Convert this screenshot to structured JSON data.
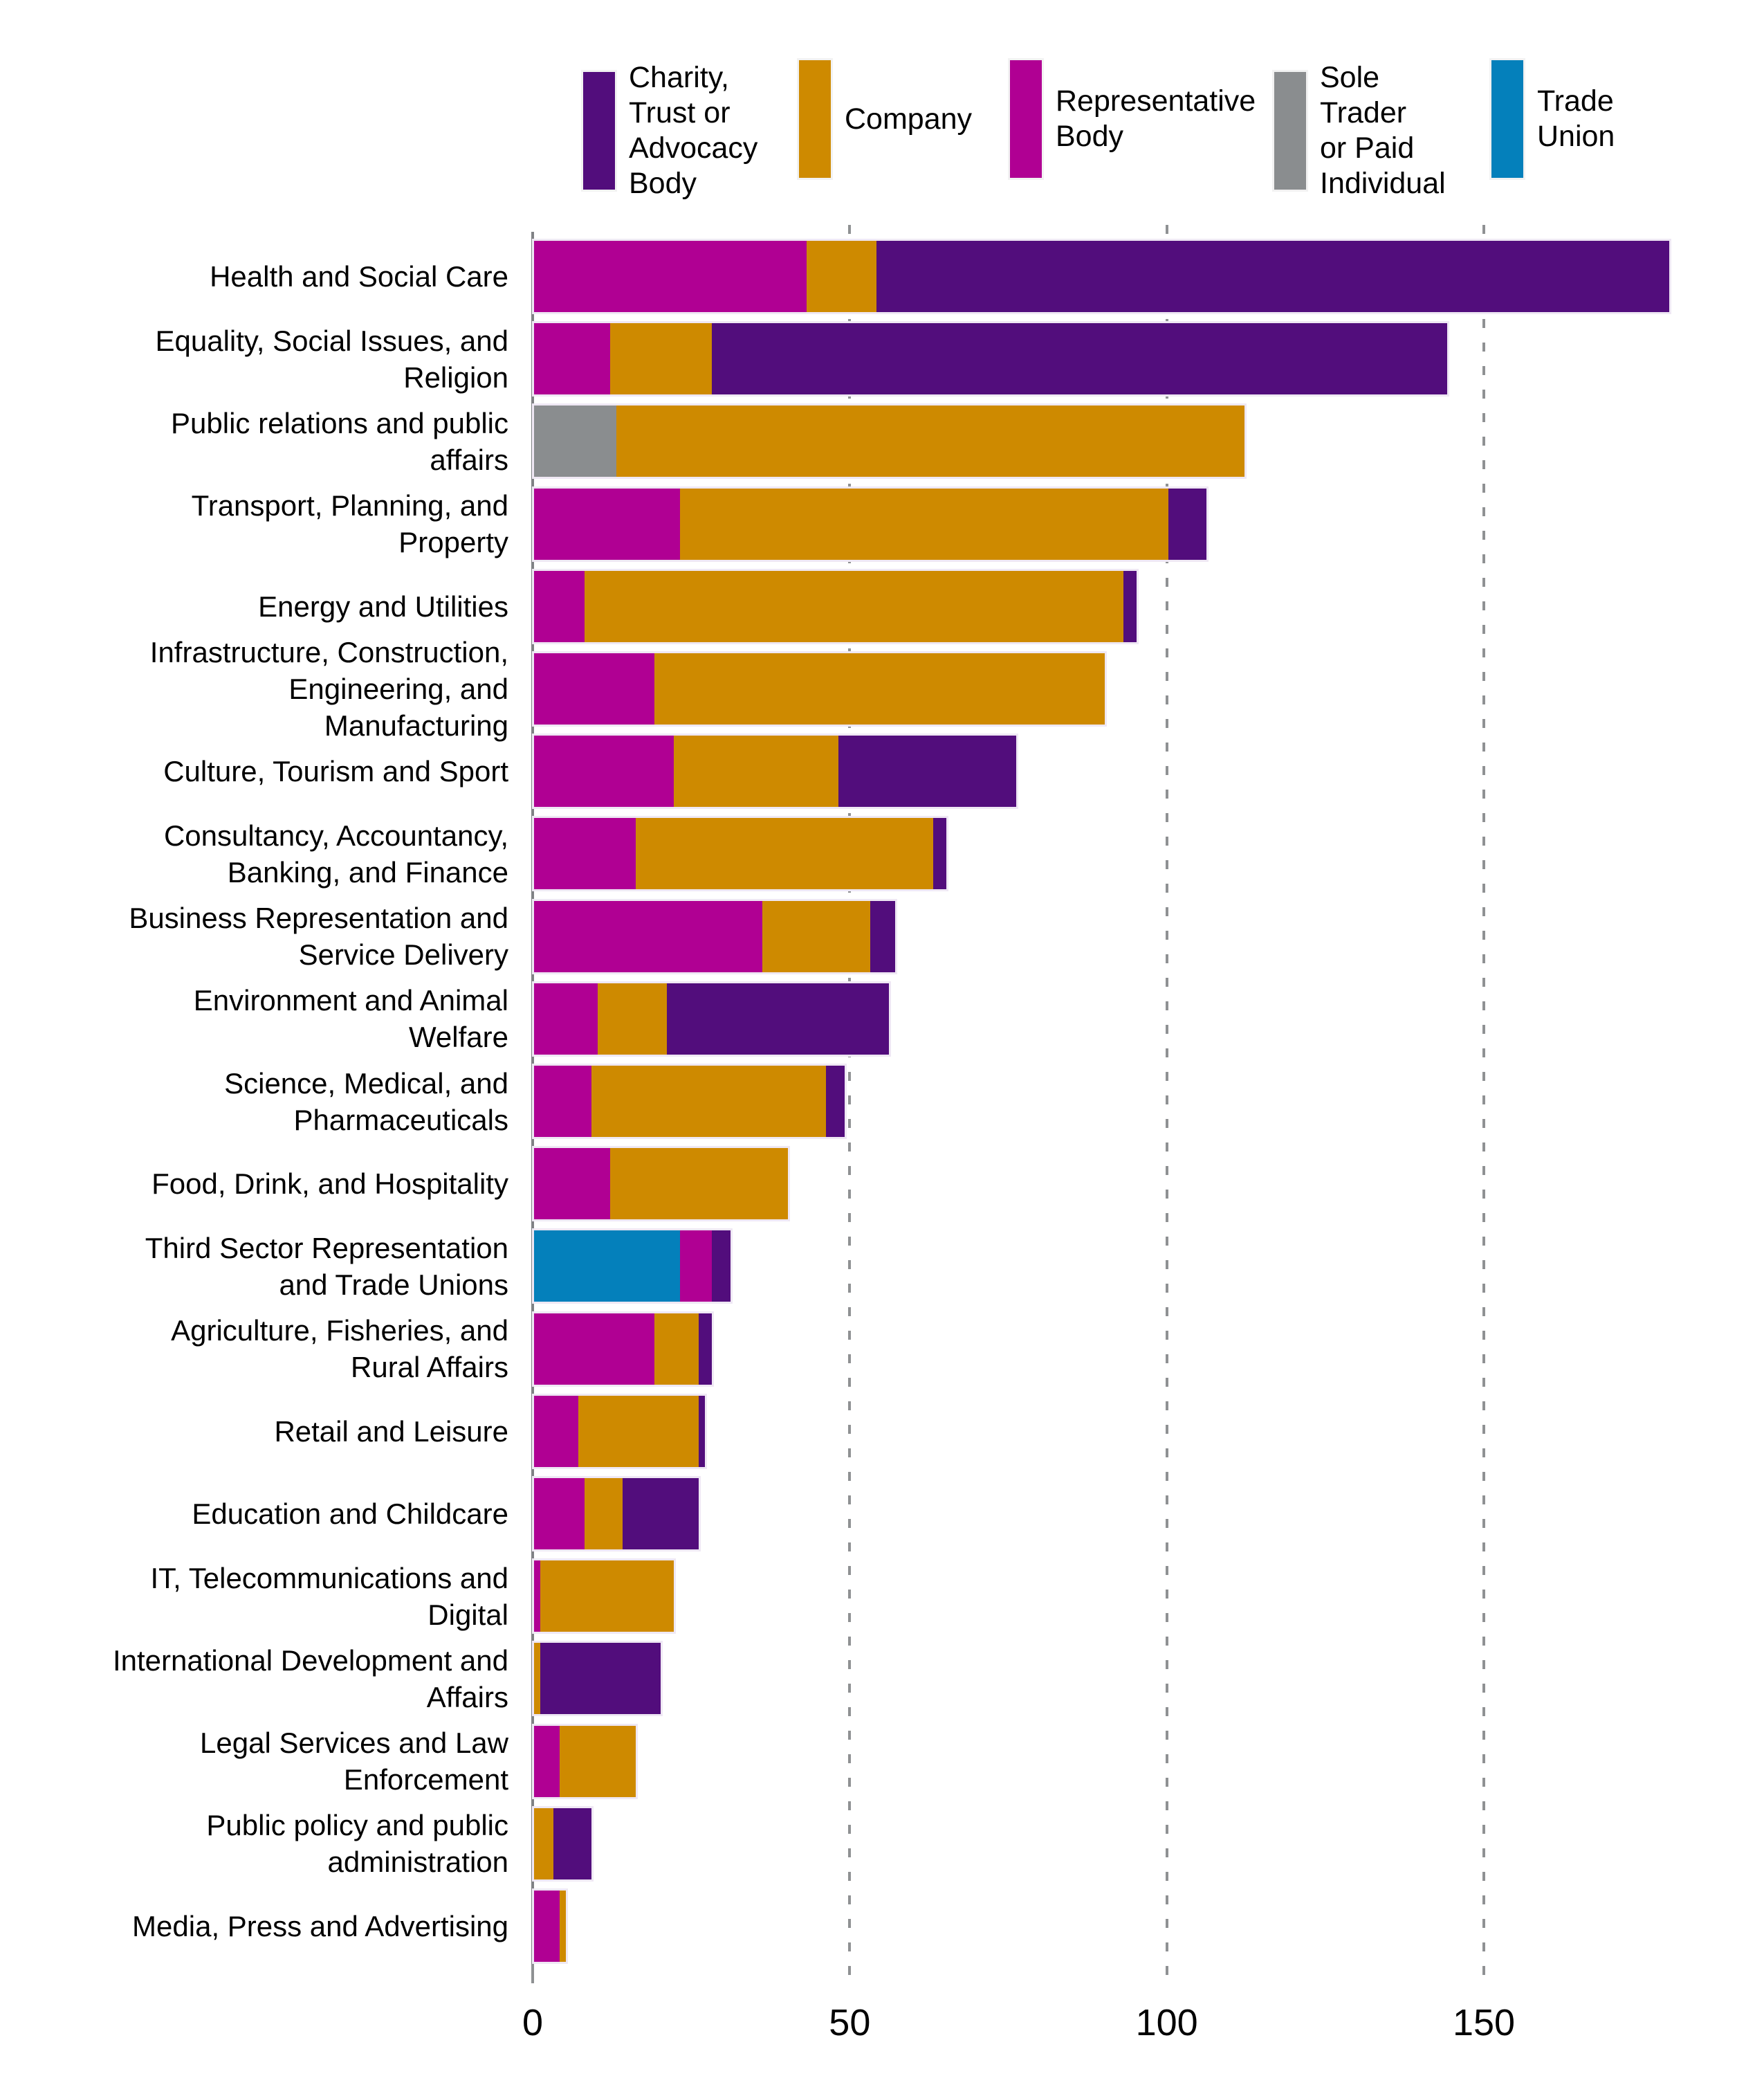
{
  "legend": {
    "items": [
      {
        "series": "Charity, Trust or Advocacy Body",
        "label": "Charity,\nTrust or\nAdvocacy\nBody"
      },
      {
        "series": "Company",
        "label": "Company"
      },
      {
        "series": "Representative Body",
        "label": "Representative\nBody"
      },
      {
        "series": "Sole Trader or Paid Individual",
        "label": "Sole\nTrader\nor Paid\nIndividual"
      },
      {
        "series": "Trade Union",
        "label": "Trade\nUnion"
      }
    ]
  },
  "chart_data": {
    "type": "bar",
    "orientation": "horizontal",
    "stacked": true,
    "title": "",
    "xlabel": "",
    "ylabel": "",
    "x_ticks": [
      0,
      50,
      100,
      150
    ],
    "xlim": [
      0,
      186
    ],
    "grid": "dashed vertical gridlines at 50, 100, 150; solid axis line at 0",
    "legend_position": "top",
    "colors": {
      "Charity, Trust or Advocacy Body": "#520d7c",
      "Company": "#ce8a00",
      "Representative Body": "#b00093",
      "Sole Trader or Paid Individual": "#8a8d8f",
      "Trade Union": "#0480bb"
    },
    "rows": [
      {
        "category": "Health and Social Care",
        "label": "Health and Social Care",
        "segments": [
          {
            "series": "Representative Body",
            "value": 43
          },
          {
            "series": "Company",
            "value": 11
          },
          {
            "series": "Charity, Trust or Advocacy Body",
            "value": 125
          }
        ],
        "total": 179
      },
      {
        "category": "Equality, Social Issues, and Religion",
        "label": "Equality, Social Issues, and\nReligion",
        "segments": [
          {
            "series": "Representative Body",
            "value": 12
          },
          {
            "series": "Company",
            "value": 16
          },
          {
            "series": "Charity, Trust or Advocacy Body",
            "value": 116
          }
        ],
        "total": 144
      },
      {
        "category": "Public relations and public affairs",
        "label": "Public relations and public\naffairs",
        "segments": [
          {
            "series": "Sole Trader or Paid Individual",
            "value": 13
          },
          {
            "series": "Company",
            "value": 99
          }
        ],
        "total": 112
      },
      {
        "category": "Transport, Planning, and Property",
        "label": "Transport, Planning, and\nProperty",
        "segments": [
          {
            "series": "Representative Body",
            "value": 23
          },
          {
            "series": "Company",
            "value": 77
          },
          {
            "series": "Charity, Trust or Advocacy Body",
            "value": 6
          }
        ],
        "total": 106
      },
      {
        "category": "Energy and Utilities",
        "label": "Energy and Utilities",
        "segments": [
          {
            "series": "Representative Body",
            "value": 8
          },
          {
            "series": "Company",
            "value": 85
          },
          {
            "series": "Charity, Trust or Advocacy Body",
            "value": 2
          }
        ],
        "total": 95
      },
      {
        "category": "Infrastructure, Construction, Engineering, and Manufacturing",
        "label": "Infrastructure, Construction,\nEngineering, and\nManufacturing",
        "segments": [
          {
            "series": "Representative Body",
            "value": 19
          },
          {
            "series": "Company",
            "value": 71
          }
        ],
        "total": 90
      },
      {
        "category": "Culture, Tourism and Sport",
        "label": "Culture, Tourism and Sport",
        "segments": [
          {
            "series": "Representative Body",
            "value": 22
          },
          {
            "series": "Company",
            "value": 26
          },
          {
            "series": "Charity, Trust or Advocacy Body",
            "value": 28
          }
        ],
        "total": 76
      },
      {
        "category": "Consultancy, Accountancy, Banking, and Finance",
        "label": "Consultancy, Accountancy,\nBanking, and Finance",
        "segments": [
          {
            "series": "Representative Body",
            "value": 16
          },
          {
            "series": "Company",
            "value": 47
          },
          {
            "series": "Charity, Trust or Advocacy Body",
            "value": 2
          }
        ],
        "total": 65
      },
      {
        "category": "Business Representation and Service Delivery",
        "label": "Business Representation and\nService Delivery",
        "segments": [
          {
            "series": "Representative Body",
            "value": 36
          },
          {
            "series": "Company",
            "value": 17
          },
          {
            "series": "Charity, Trust or Advocacy Body",
            "value": 4
          }
        ],
        "total": 57
      },
      {
        "category": "Environment and Animal Welfare",
        "label": "Environment and Animal\nWelfare",
        "segments": [
          {
            "series": "Representative Body",
            "value": 10
          },
          {
            "series": "Company",
            "value": 11
          },
          {
            "series": "Charity, Trust or Advocacy Body",
            "value": 35
          }
        ],
        "total": 56
      },
      {
        "category": "Science, Medical, and Pharmaceuticals",
        "label": "Science, Medical, and\nPharmaceuticals",
        "segments": [
          {
            "series": "Representative Body",
            "value": 9
          },
          {
            "series": "Company",
            "value": 37
          },
          {
            "series": "Charity, Trust or Advocacy Body",
            "value": 3
          }
        ],
        "total": 49
      },
      {
        "category": "Food, Drink, and Hospitality",
        "label": "Food, Drink, and Hospitality",
        "segments": [
          {
            "series": "Representative Body",
            "value": 12
          },
          {
            "series": "Company",
            "value": 28
          }
        ],
        "total": 40
      },
      {
        "category": "Third Sector Representation and Trade Unions",
        "label": "Third Sector Representation\nand Trade Unions",
        "segments": [
          {
            "series": "Trade Union",
            "value": 23
          },
          {
            "series": "Representative Body",
            "value": 5
          },
          {
            "series": "Charity, Trust or Advocacy Body",
            "value": 3
          }
        ],
        "total": 31
      },
      {
        "category": "Agriculture, Fisheries, and Rural Affairs",
        "label": "Agriculture, Fisheries, and\nRural Affairs",
        "segments": [
          {
            "series": "Representative Body",
            "value": 19
          },
          {
            "series": "Company",
            "value": 7
          },
          {
            "series": "Charity, Trust or Advocacy Body",
            "value": 2
          }
        ],
        "total": 28
      },
      {
        "category": "Retail and Leisure",
        "label": "Retail and Leisure",
        "segments": [
          {
            "series": "Representative Body",
            "value": 7
          },
          {
            "series": "Company",
            "value": 19
          },
          {
            "series": "Charity, Trust or Advocacy Body",
            "value": 1
          }
        ],
        "total": 27
      },
      {
        "category": "Education and Childcare",
        "label": "Education and Childcare",
        "segments": [
          {
            "series": "Representative Body",
            "value": 8
          },
          {
            "series": "Company",
            "value": 6
          },
          {
            "series": "Charity, Trust or Advocacy Body",
            "value": 12
          }
        ],
        "total": 26
      },
      {
        "category": "IT, Telecommunications and Digital",
        "label": "IT, Telecommunications and\nDigital",
        "segments": [
          {
            "series": "Representative Body",
            "value": 1
          },
          {
            "series": "Company",
            "value": 21
          }
        ],
        "total": 22
      },
      {
        "category": "International Development and Affairs",
        "label": "International Development and\nAffairs",
        "segments": [
          {
            "series": "Company",
            "value": 1
          },
          {
            "series": "Charity, Trust or Advocacy Body",
            "value": 19
          }
        ],
        "total": 20
      },
      {
        "category": "Legal Services and Law Enforcement",
        "label": "Legal Services and Law\nEnforcement",
        "segments": [
          {
            "series": "Representative Body",
            "value": 4
          },
          {
            "series": "Company",
            "value": 12
          }
        ],
        "total": 16
      },
      {
        "category": "Public policy and public administration",
        "label": "Public policy and public\nadministration",
        "segments": [
          {
            "series": "Company",
            "value": 3
          },
          {
            "series": "Charity, Trust or Advocacy Body",
            "value": 6
          }
        ],
        "total": 9
      },
      {
        "category": "Media, Press and Advertising",
        "label": "Media, Press and Advertising",
        "segments": [
          {
            "series": "Representative Body",
            "value": 4
          },
          {
            "series": "Company",
            "value": 1
          }
        ],
        "total": 5
      }
    ]
  }
}
